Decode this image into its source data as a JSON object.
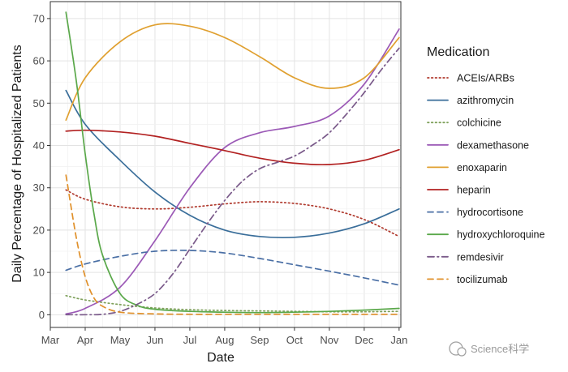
{
  "chart_data": {
    "type": "line",
    "title": "",
    "xlabel": "Date",
    "ylabel": "Daily Percentage of Hospitalized Patients",
    "x_ticks": [
      "Mar",
      "Apr",
      "May",
      "Jun",
      "Jul",
      "Aug",
      "Sep",
      "Oct",
      "Nov",
      "Dec",
      "Jan"
    ],
    "xlim": [
      0,
      10.05
    ],
    "y_ticks": [
      0,
      10,
      20,
      30,
      40,
      50,
      60,
      70
    ],
    "ylim": [
      -3,
      74
    ],
    "grid": true,
    "legend_position": "right",
    "legend_title": "Medication",
    "series": [
      {
        "name": "ACEIs/ARBs",
        "color": "#b03a2e",
        "dash": "dotted",
        "points": [
          [
            0.45,
            29.5
          ],
          [
            1,
            27.3
          ],
          [
            2,
            25.5
          ],
          [
            3,
            25.0
          ],
          [
            4,
            25.4
          ],
          [
            5,
            26.2
          ],
          [
            6,
            26.7
          ],
          [
            7,
            26.3
          ],
          [
            8,
            25.0
          ],
          [
            9,
            22.5
          ],
          [
            10,
            18.5
          ]
        ]
      },
      {
        "name": "azithromycin",
        "color": "#3a6e9a",
        "dash": "solid",
        "points": [
          [
            0.45,
            53.0
          ],
          [
            1,
            45.0
          ],
          [
            2,
            36.5
          ],
          [
            3,
            29.0
          ],
          [
            4,
            23.5
          ],
          [
            5,
            20.0
          ],
          [
            6,
            18.5
          ],
          [
            7,
            18.3
          ],
          [
            8,
            19.3
          ],
          [
            9,
            21.5
          ],
          [
            10,
            25.0
          ]
        ]
      },
      {
        "name": "colchicine",
        "color": "#7ea05a",
        "dash": "dotted",
        "points": [
          [
            0.45,
            4.5
          ],
          [
            1,
            3.5
          ],
          [
            2,
            2.4
          ],
          [
            3,
            1.6
          ],
          [
            4,
            1.2
          ],
          [
            5,
            1.0
          ],
          [
            6,
            0.9
          ],
          [
            7,
            0.8
          ],
          [
            8,
            0.7
          ],
          [
            9,
            0.7
          ],
          [
            10,
            0.8
          ]
        ]
      },
      {
        "name": "dexamethasone",
        "color": "#9b59b6",
        "dash": "solid",
        "points": [
          [
            0.45,
            0.2
          ],
          [
            1,
            1.5
          ],
          [
            2,
            6.5
          ],
          [
            3,
            17.5
          ],
          [
            4,
            30.0
          ],
          [
            5,
            39.5
          ],
          [
            6,
            43.0
          ],
          [
            7,
            44.5
          ],
          [
            8,
            47.0
          ],
          [
            9,
            54.5
          ],
          [
            10,
            67.5
          ]
        ]
      },
      {
        "name": "enoxaparin",
        "color": "#e0a030",
        "dash": "solid",
        "points": [
          [
            0.45,
            46.0
          ],
          [
            1,
            56.0
          ],
          [
            2,
            64.5
          ],
          [
            3,
            68.5
          ],
          [
            4,
            68.2
          ],
          [
            5,
            65.5
          ],
          [
            6,
            61.0
          ],
          [
            7,
            56.0
          ],
          [
            8,
            53.5
          ],
          [
            9,
            56.0
          ],
          [
            10,
            65.5
          ]
        ]
      },
      {
        "name": "heparin",
        "color": "#b22222",
        "dash": "solid",
        "points": [
          [
            0.45,
            43.4
          ],
          [
            1,
            43.6
          ],
          [
            2,
            43.2
          ],
          [
            3,
            42.2
          ],
          [
            4,
            40.5
          ],
          [
            5,
            38.8
          ],
          [
            6,
            37.0
          ],
          [
            7,
            35.8
          ],
          [
            8,
            35.5
          ],
          [
            9,
            36.5
          ],
          [
            10,
            39.0
          ]
        ]
      },
      {
        "name": "hydrocortisone",
        "color": "#4a6fa5",
        "dash": "dashed",
        "points": [
          [
            0.45,
            10.5
          ],
          [
            1,
            12.0
          ],
          [
            2,
            13.8
          ],
          [
            3,
            15.0
          ],
          [
            4,
            15.2
          ],
          [
            5,
            14.6
          ],
          [
            6,
            13.3
          ],
          [
            7,
            11.8
          ],
          [
            8,
            10.3
          ],
          [
            9,
            8.7
          ],
          [
            10,
            7.0
          ]
        ]
      },
      {
        "name": "hydroxychloroquine",
        "color": "#5aa84a",
        "dash": "solid",
        "points": [
          [
            0.45,
            71.5
          ],
          [
            0.75,
            55.0
          ],
          [
            1,
            38.0
          ],
          [
            1.25,
            24.0
          ],
          [
            1.5,
            14.0
          ],
          [
            2,
            5.0
          ],
          [
            2.5,
            2.2
          ],
          [
            3,
            1.3
          ],
          [
            4,
            0.8
          ],
          [
            5,
            0.6
          ],
          [
            6,
            0.5
          ],
          [
            7,
            0.6
          ],
          [
            8,
            0.8
          ],
          [
            9,
            1.1
          ],
          [
            10,
            1.5
          ]
        ]
      },
      {
        "name": "remdesivir",
        "color": "#7a5a8a",
        "dash": "dashdot",
        "points": [
          [
            0.45,
            0.0
          ],
          [
            1,
            0.0
          ],
          [
            1.5,
            0.1
          ],
          [
            2,
            0.8
          ],
          [
            2.5,
            2.5
          ],
          [
            3,
            5.0
          ],
          [
            3.5,
            9.5
          ],
          [
            4,
            15.5
          ],
          [
            4.5,
            21.5
          ],
          [
            5,
            27.0
          ],
          [
            5.5,
            31.5
          ],
          [
            6,
            34.5
          ],
          [
            6.5,
            36.0
          ],
          [
            7,
            37.5
          ],
          [
            7.5,
            40.0
          ],
          [
            8,
            43.0
          ],
          [
            8.5,
            47.5
          ],
          [
            9,
            52.5
          ],
          [
            9.5,
            58.0
          ],
          [
            10,
            63.0
          ]
        ]
      },
      {
        "name": "tocilizumab",
        "color": "#e0902a",
        "dash": "dashed",
        "points": [
          [
            0.45,
            33.0
          ],
          [
            0.75,
            18.0
          ],
          [
            1,
            9.0
          ],
          [
            1.25,
            4.0
          ],
          [
            1.5,
            2.0
          ],
          [
            2,
            0.6
          ],
          [
            3,
            0.2
          ],
          [
            4,
            0.1
          ],
          [
            5,
            0.1
          ],
          [
            6,
            0.1
          ],
          [
            7,
            0.1
          ],
          [
            8,
            0.1
          ],
          [
            9,
            0.1
          ],
          [
            10,
            0.1
          ]
        ]
      }
    ]
  },
  "watermark": {
    "text": "Science科学"
  }
}
